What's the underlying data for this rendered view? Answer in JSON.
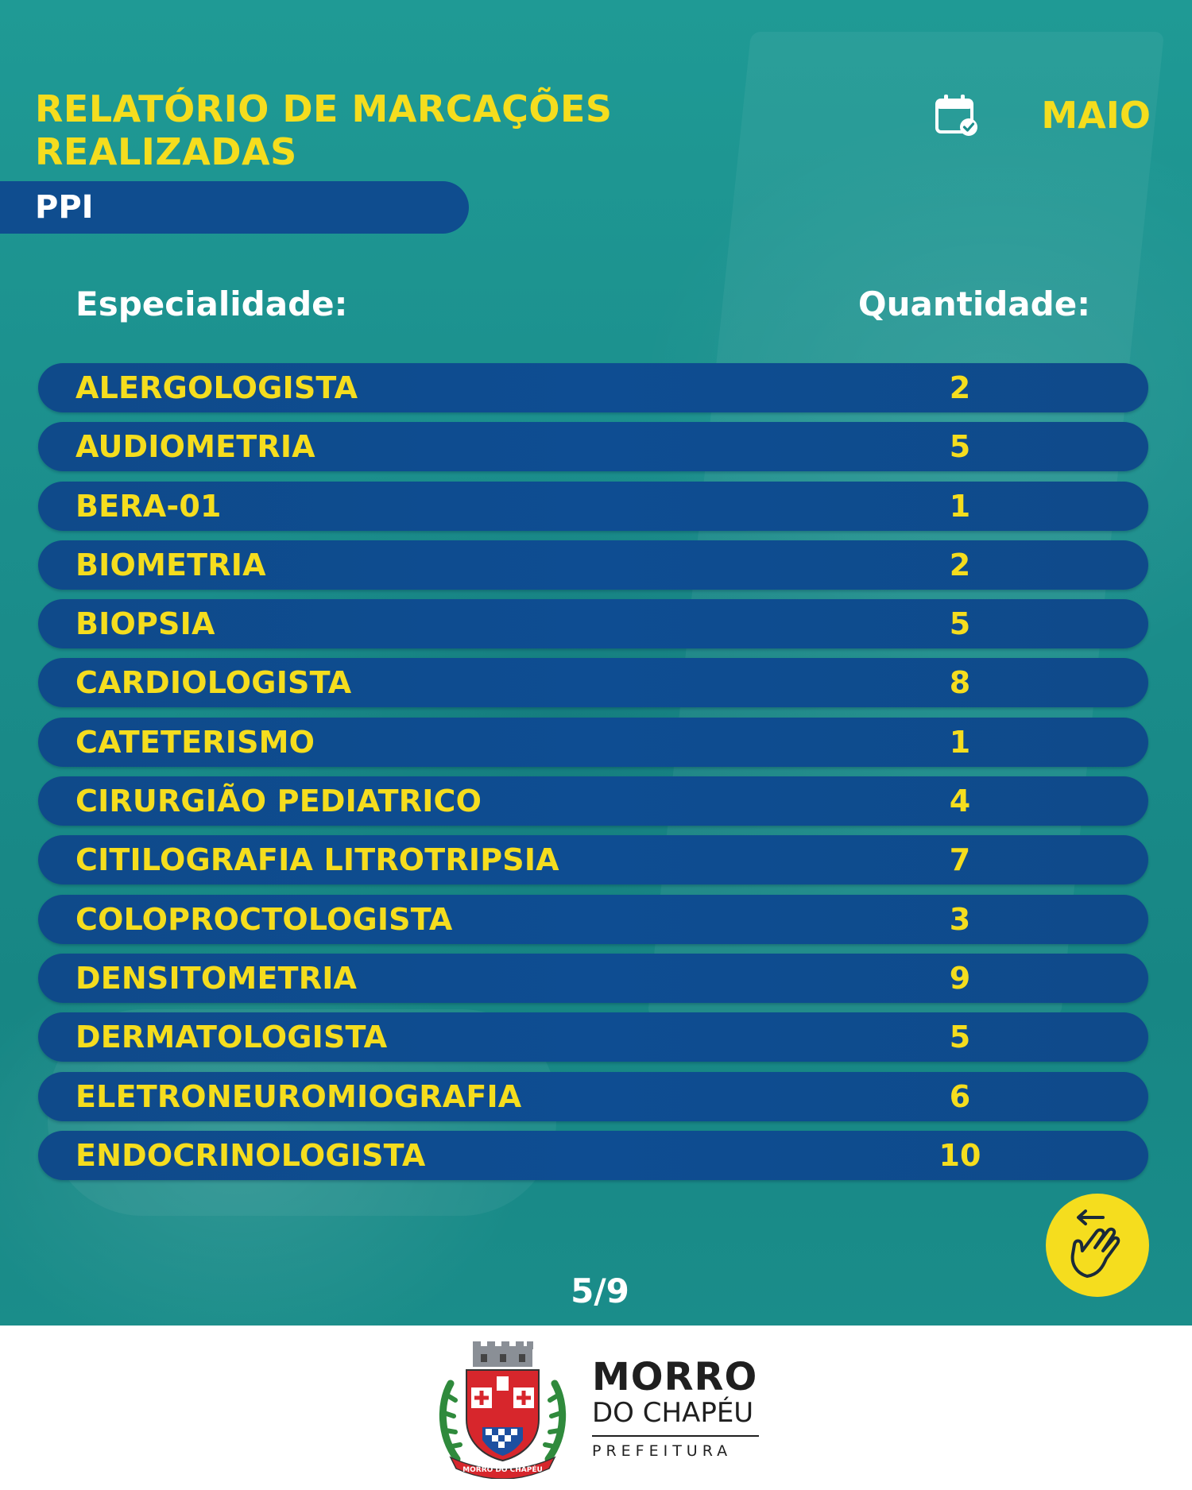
{
  "header": {
    "title_line1": "RELATÓRIO DE MARCAÇÕES",
    "title_line2": "REALIZADAS",
    "month": "MAIO",
    "calendar_icon": "calendar-check-icon"
  },
  "category": {
    "label": "PPI"
  },
  "table": {
    "headers": {
      "specialty": "Especialidade:",
      "quantity": "Quantidade:"
    },
    "rows": [
      {
        "name": "ALERGOLOGISTA",
        "qty": "2"
      },
      {
        "name": "AUDIOMETRIA",
        "qty": "5"
      },
      {
        "name": "BERA-01",
        "qty": "1"
      },
      {
        "name": "BIOMETRIA",
        "qty": "2"
      },
      {
        "name": "BIOPSIA",
        "qty": "5"
      },
      {
        "name": "CARDIOLOGISTA",
        "qty": "8"
      },
      {
        "name": "CATETERISMO",
        "qty": "1"
      },
      {
        "name": "CIRURGIÃO PEDIATRICO",
        "qty": "4"
      },
      {
        "name": "CITILOGRAFIA LITROTRIPSIA",
        "qty": "7"
      },
      {
        "name": "COLOPROCTOLOGISTA",
        "qty": "3"
      },
      {
        "name": "DENSITOMETRIA",
        "qty": "9"
      },
      {
        "name": "DERMATOLOGISTA",
        "qty": "5"
      },
      {
        "name": "ELETRONEUROMIOGRAFIA",
        "qty": "6"
      },
      {
        "name": "ENDOCRINOLOGISTA",
        "qty": "10"
      }
    ]
  },
  "pager": {
    "label": "5/9"
  },
  "swipe_icon": "swipe-hand-icon",
  "footer": {
    "brand_line1": "MORRO",
    "brand_line2": "DO CHAPÉU",
    "brand_line3": "PREFEITURA",
    "crest_text": "MORRO DO CHAPÉU",
    "crest_icon": "municipal-crest-icon"
  },
  "colors": {
    "accent_yellow": "#f5dd1e",
    "row_blue": "#0f4d8f",
    "background_teal": "#1b8e8c",
    "white": "#ffffff"
  }
}
